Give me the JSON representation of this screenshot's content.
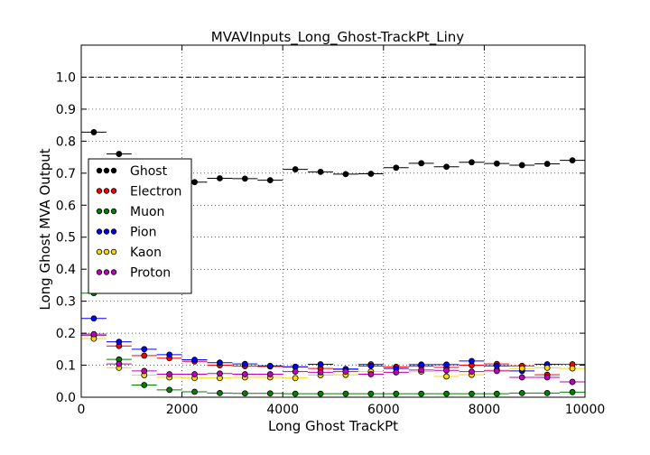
{
  "chart_data": {
    "type": "scatter",
    "title": "MVAVInputs_Long_Ghost-TrackPt_Liny",
    "xlabel": "Long Ghost TrackPt",
    "ylabel": "Long Ghost MVA Output",
    "xlim": [
      0,
      10000
    ],
    "ylim": [
      0.0,
      1.1
    ],
    "x_ticks": [
      "0",
      "2000",
      "4000",
      "6000",
      "8000",
      "10000"
    ],
    "y_ticks": [
      "0.0",
      "0.1",
      "0.2",
      "0.3",
      "0.4",
      "0.5",
      "0.6",
      "0.7",
      "0.8",
      "0.9",
      "1.0"
    ],
    "grid": true,
    "reference_line": 1.0,
    "legend_position": "left",
    "bin_edges": [
      0,
      500,
      1000,
      1500,
      2000,
      2500,
      3000,
      3500,
      4000,
      4500,
      5000,
      5500,
      6000,
      6500,
      7000,
      7500,
      8000,
      8500,
      9000,
      9500,
      10000
    ],
    "x": [
      250,
      750,
      1250,
      1750,
      2250,
      2750,
      3250,
      3750,
      4250,
      4750,
      5250,
      5750,
      6250,
      6750,
      7250,
      7750,
      8250,
      8750,
      9250,
      9750
    ],
    "series": [
      {
        "name": "Ghost",
        "color": "#000000",
        "values": [
          0.828,
          0.76,
          0.69,
          0.682,
          0.672,
          0.684,
          0.683,
          0.678,
          0.712,
          0.704,
          0.697,
          0.698,
          0.717,
          0.731,
          0.72,
          0.734,
          0.73,
          0.725,
          0.729,
          0.74
        ]
      },
      {
        "name": "Electron",
        "color": "#ff0000",
        "values": [
          0.193,
          0.16,
          0.13,
          0.122,
          0.112,
          0.1,
          0.097,
          0.096,
          0.095,
          0.09,
          0.087,
          0.103,
          0.095,
          0.097,
          0.093,
          0.1,
          0.104,
          0.098,
          0.07,
          0.103
        ]
      },
      {
        "name": "Muon",
        "color": "#008000",
        "values": [
          0.325,
          0.118,
          0.038,
          0.023,
          0.017,
          0.013,
          0.012,
          0.012,
          0.011,
          0.011,
          0.011,
          0.011,
          0.011,
          0.011,
          0.011,
          0.011,
          0.011,
          0.013,
          0.013,
          0.016
        ]
      },
      {
        "name": "Pion",
        "color": "#0000ff",
        "values": [
          0.246,
          0.173,
          0.15,
          0.133,
          0.117,
          0.108,
          0.104,
          0.098,
          0.095,
          0.103,
          0.088,
          0.098,
          0.09,
          0.102,
          0.102,
          0.113,
          0.098,
          0.082,
          0.103,
          0.048
        ]
      },
      {
        "name": "Kaon",
        "color": "#ffd700",
        "values": [
          0.183,
          0.092,
          0.069,
          0.062,
          0.06,
          0.06,
          0.062,
          0.062,
          0.06,
          0.069,
          0.07,
          0.08,
          0.078,
          0.08,
          0.065,
          0.07,
          0.085,
          0.09,
          0.092,
          0.09
        ]
      },
      {
        "name": "Proton",
        "color": "#bf00bf",
        "values": [
          0.197,
          0.104,
          0.082,
          0.072,
          0.072,
          0.074,
          0.072,
          0.072,
          0.08,
          0.078,
          0.08,
          0.072,
          0.078,
          0.085,
          0.084,
          0.08,
          0.082,
          0.062,
          0.062,
          0.048
        ]
      }
    ]
  }
}
